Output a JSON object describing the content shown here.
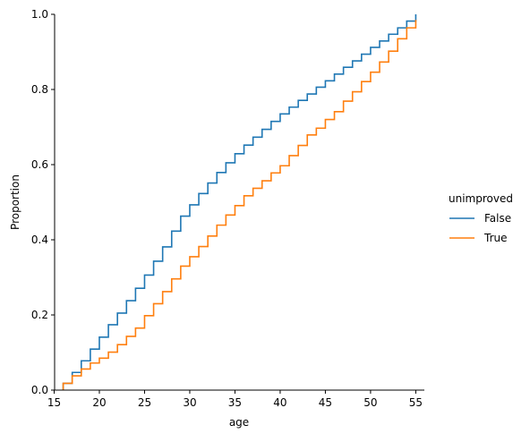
{
  "chart_data": {
    "type": "line",
    "drawstyle": "steps-post",
    "title": "",
    "xlabel": "age",
    "ylabel": "Proportion",
    "xlim": [
      15.05,
      55.95
    ],
    "ylim": [
      0,
      1
    ],
    "xticks": [
      15,
      20,
      25,
      30,
      35,
      40,
      45,
      50,
      55
    ],
    "yticks": [
      0.0,
      0.2,
      0.4,
      0.6,
      0.8,
      1.0
    ],
    "grid": false,
    "legend": {
      "title": "unimproved",
      "position": "right"
    },
    "x": [
      16,
      17,
      18,
      19,
      20,
      21,
      22,
      23,
      24,
      25,
      26,
      27,
      28,
      29,
      30,
      31,
      32,
      33,
      34,
      35,
      36,
      37,
      38,
      39,
      40,
      41,
      42,
      43,
      44,
      45,
      46,
      47,
      48,
      49,
      50,
      51,
      52,
      53,
      54,
      55
    ],
    "series": [
      {
        "name": "False",
        "color": "#1f77b4",
        "values": [
          0.018,
          0.047,
          0.078,
          0.109,
          0.141,
          0.174,
          0.205,
          0.238,
          0.271,
          0.306,
          0.343,
          0.381,
          0.423,
          0.463,
          0.493,
          0.523,
          0.551,
          0.579,
          0.605,
          0.629,
          0.652,
          0.673,
          0.694,
          0.715,
          0.735,
          0.753,
          0.771,
          0.788,
          0.806,
          0.823,
          0.841,
          0.859,
          0.876,
          0.894,
          0.912,
          0.929,
          0.947,
          0.964,
          0.982,
          1.0
        ]
      },
      {
        "name": "True",
        "color": "#ff7f0e",
        "values": [
          0.018,
          0.038,
          0.056,
          0.072,
          0.085,
          0.101,
          0.121,
          0.143,
          0.165,
          0.198,
          0.23,
          0.262,
          0.296,
          0.33,
          0.355,
          0.382,
          0.41,
          0.439,
          0.466,
          0.491,
          0.517,
          0.537,
          0.557,
          0.578,
          0.597,
          0.624,
          0.651,
          0.679,
          0.697,
          0.72,
          0.741,
          0.769,
          0.794,
          0.821,
          0.846,
          0.873,
          0.902,
          0.935,
          0.964,
          0.985
        ]
      }
    ]
  }
}
